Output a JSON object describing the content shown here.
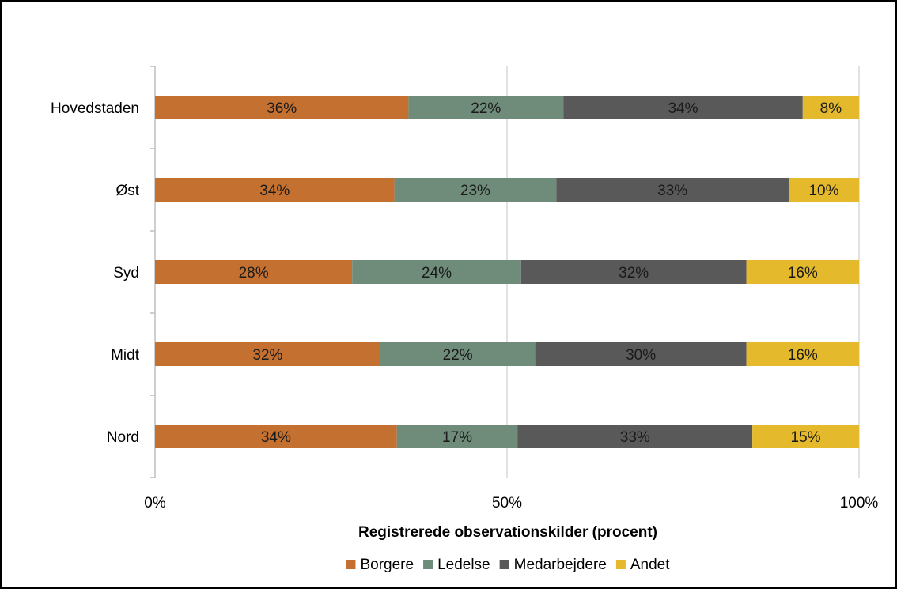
{
  "chart_data": {
    "type": "bar",
    "orientation": "horizontal",
    "stacked": "percent",
    "categories": [
      "Hovedstaden",
      "Øst",
      "Syd",
      "Midt",
      "Nord"
    ],
    "series": [
      {
        "name": "Borgere",
        "color": "#c47030",
        "values": [
          36,
          34,
          28,
          32,
          34
        ],
        "labels": [
          "36%",
          "34%",
          "28%",
          "32%",
          "34%"
        ]
      },
      {
        "name": "Ledelse",
        "color": "#6f8c7a",
        "values": [
          22,
          23,
          24,
          22,
          17
        ],
        "labels": [
          "22%",
          "23%",
          "24%",
          "22%",
          "17%"
        ]
      },
      {
        "name": "Medarbejdere",
        "color": "#595959",
        "values": [
          34,
          33,
          32,
          30,
          33
        ],
        "labels": [
          "34%",
          "33%",
          "32%",
          "30%",
          "33%"
        ]
      },
      {
        "name": "Andet",
        "color": "#e4b92c",
        "values": [
          8,
          10,
          16,
          16,
          15
        ],
        "labels": [
          "8%",
          "10%",
          "16%",
          "16%",
          "15%"
        ]
      }
    ],
    "xlabel": "Registrerede observationskilder (procent)",
    "ylabel": "",
    "xlim": [
      0,
      100
    ],
    "xticks": [
      0,
      50,
      100
    ],
    "xtick_labels": [
      "0%",
      "50%",
      "100%"
    ],
    "grid": "vertical",
    "legend_position": "bottom"
  }
}
